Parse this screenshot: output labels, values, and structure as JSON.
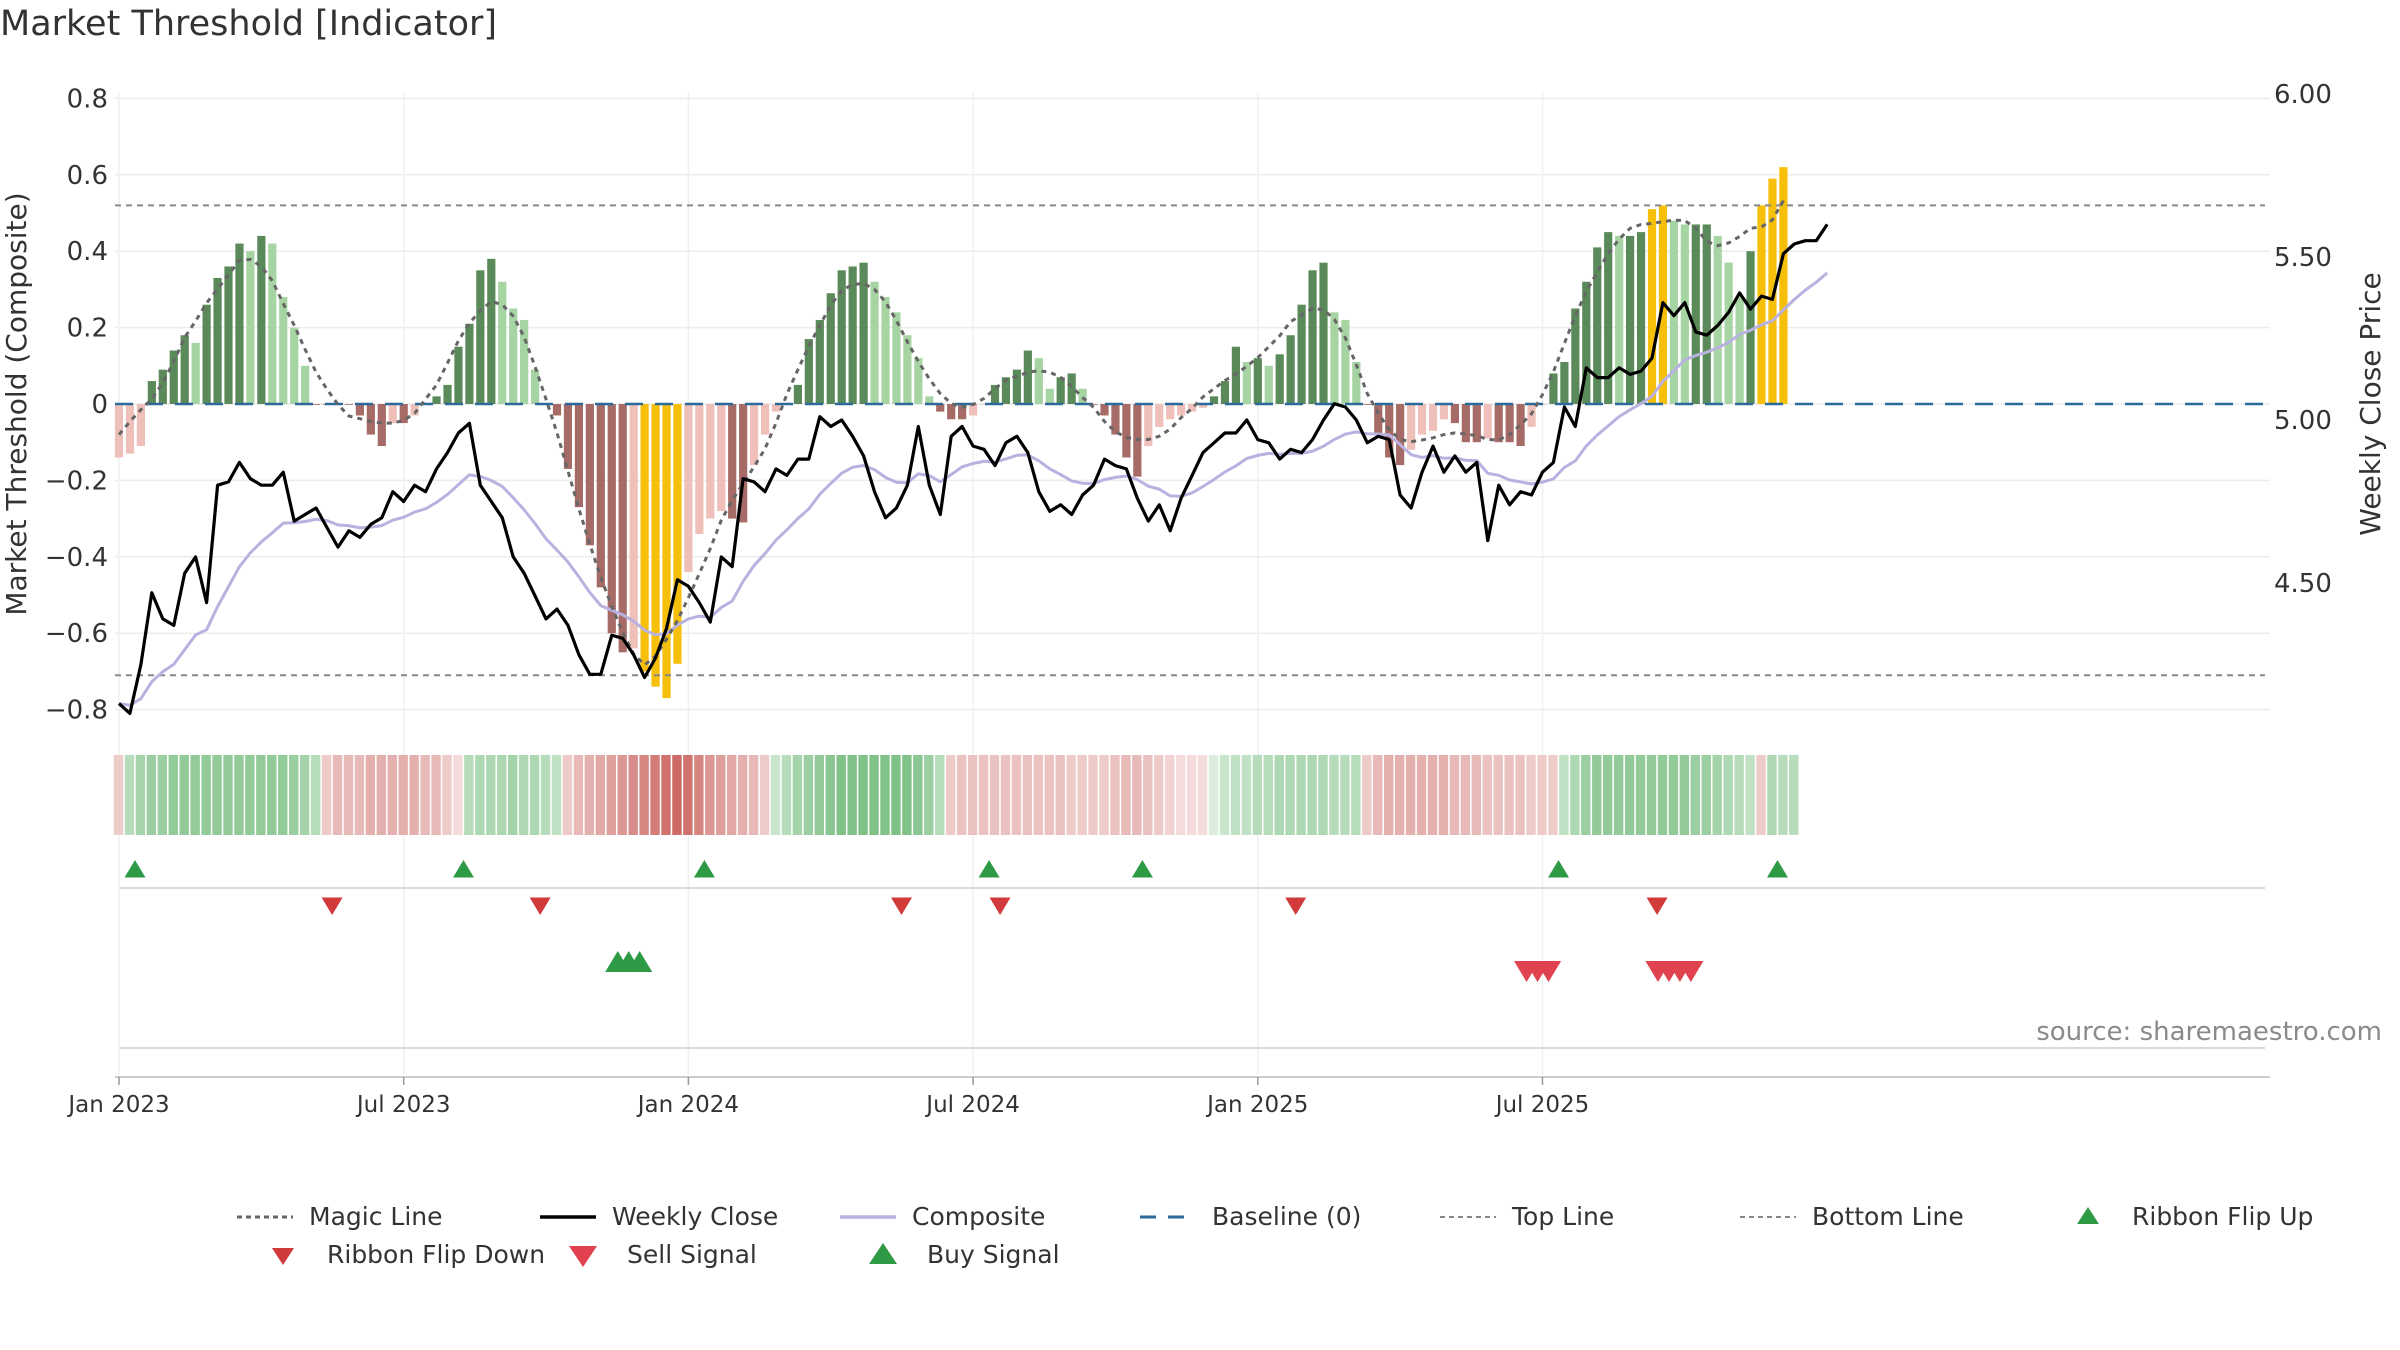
{
  "chart_data": {
    "type": "bar",
    "title": "Market Threshold [Indicator]",
    "ylabel": "Market Threshold (Composite)",
    "y2label": "Weekly Close Price",
    "ylim": [
      -0.84,
      0.84
    ],
    "y2lim": [
      4.0,
      6.05
    ],
    "y_ticks": [
      {
        "value": 0.8,
        "label": "0.8"
      },
      {
        "value": 0.6,
        "label": "0.6"
      },
      {
        "value": 0.4,
        "label": "0.4"
      },
      {
        "value": 0.2,
        "label": "0.2"
      },
      {
        "value": 0,
        "label": "0"
      },
      {
        "value": -0.2,
        "label": "−0.2"
      },
      {
        "value": -0.4,
        "label": "−0.4"
      },
      {
        "value": -0.6,
        "label": "−0.6"
      },
      {
        "value": -0.8,
        "label": "−0.8"
      }
    ],
    "y2_ticks": [
      {
        "value": 6.0,
        "label": "6.00"
      },
      {
        "value": 5.5,
        "label": "5.50"
      },
      {
        "value": 5.0,
        "label": "5.00"
      },
      {
        "value": 4.5,
        "label": "4.50"
      }
    ],
    "x_ticks": [
      {
        "week": 1,
        "label": "Jan 2023"
      },
      {
        "week": 27,
        "label": "Jul 2023"
      },
      {
        "week": 53,
        "label": "Jan 2024"
      },
      {
        "week": 79,
        "label": "Jul 2024"
      },
      {
        "week": 105,
        "label": "Jan 2025"
      },
      {
        "week": 131,
        "label": "Jul 2025"
      }
    ],
    "top_line": 0.52,
    "bottom_line": -0.71,
    "composite_bars": [
      -0.14,
      -0.13,
      -0.11,
      0.06,
      0.09,
      0.14,
      0.18,
      0.16,
      0.26,
      0.33,
      0.36,
      0.42,
      0.4,
      0.44,
      0.42,
      0.28,
      0.2,
      0.1,
      0,
      0,
      0,
      0,
      -0.03,
      -0.08,
      -0.11,
      -0.05,
      -0.05,
      -0.03,
      0,
      0.02,
      0.05,
      0.15,
      0.21,
      0.35,
      0.38,
      0.32,
      0.25,
      0.22,
      0.09,
      0,
      -0.03,
      -0.17,
      -0.27,
      -0.37,
      -0.48,
      -0.6,
      -0.65,
      -0.64,
      -0.7,
      -0.74,
      -0.77,
      -0.68,
      -0.44,
      -0.34,
      -0.3,
      -0.28,
      -0.3,
      -0.31,
      -0.16,
      -0.08,
      -0.02,
      0,
      0.05,
      0.17,
      0.22,
      0.29,
      0.35,
      0.36,
      0.37,
      0.32,
      0.28,
      0.24,
      0.18,
      0.12,
      0.02,
      -0.02,
      -0.04,
      -0.04,
      -0.03,
      0,
      0.05,
      0.07,
      0.09,
      0.14,
      0.12,
      0.04,
      0.07,
      0.08,
      0.04,
      0,
      -0.03,
      -0.08,
      -0.14,
      -0.19,
      -0.11,
      -0.06,
      -0.04,
      -0.03,
      -0.02,
      -0.01,
      0.02,
      0.06,
      0.15,
      0.11,
      0.12,
      0.1,
      0.13,
      0.18,
      0.26,
      0.35,
      0.37,
      0.24,
      0.22,
      0.11,
      0,
      -0.08,
      -0.14,
      -0.16,
      -0.12,
      -0.08,
      -0.07,
      -0.04,
      -0.05,
      -0.1,
      -0.1,
      -0.09,
      -0.1,
      -0.1,
      -0.11,
      -0.06,
      0,
      0.08,
      0.11,
      0.25,
      0.32,
      0.41,
      0.45,
      0.44,
      0.44,
      0.45,
      0.51,
      0.52,
      0.48,
      0.47,
      0.47,
      0.47,
      0.44,
      0.37,
      0.28,
      0.4,
      0.52,
      0.59,
      0.62
    ],
    "ribbon_intensity": [
      -0.3,
      0.4,
      0.5,
      0.55,
      0.55,
      0.6,
      0.6,
      0.6,
      0.6,
      0.6,
      0.6,
      0.6,
      0.6,
      0.6,
      0.6,
      0.6,
      0.55,
      0.5,
      0.4,
      -0.3,
      -0.4,
      -0.4,
      -0.4,
      -0.45,
      -0.45,
      -0.45,
      -0.45,
      -0.45,
      -0.4,
      -0.4,
      -0.3,
      -0.2,
      0.4,
      0.45,
      0.45,
      0.45,
      0.5,
      0.45,
      0.45,
      0.4,
      0.35,
      -0.3,
      -0.4,
      -0.45,
      -0.5,
      -0.55,
      -0.6,
      -0.65,
      -0.7,
      -0.75,
      -0.8,
      -0.85,
      -0.8,
      -0.7,
      -0.6,
      -0.55,
      -0.5,
      -0.45,
      -0.4,
      -0.3,
      0.3,
      0.4,
      0.5,
      0.55,
      0.6,
      0.65,
      0.7,
      0.7,
      0.7,
      0.7,
      0.7,
      0.7,
      0.7,
      0.65,
      0.55,
      0.4,
      -0.3,
      -0.35,
      -0.35,
      -0.35,
      -0.35,
      -0.35,
      -0.35,
      -0.35,
      -0.35,
      -0.35,
      -0.35,
      -0.3,
      -0.3,
      -0.3,
      -0.3,
      -0.35,
      -0.4,
      -0.4,
      -0.35,
      -0.3,
      -0.25,
      -0.2,
      -0.2,
      -0.2,
      0.2,
      0.3,
      0.35,
      0.35,
      0.4,
      0.4,
      0.45,
      0.45,
      0.45,
      0.45,
      0.45,
      0.4,
      0.4,
      0.4,
      -0.3,
      -0.4,
      -0.45,
      -0.45,
      -0.45,
      -0.45,
      -0.45,
      -0.45,
      -0.4,
      -0.4,
      -0.4,
      -0.35,
      -0.35,
      -0.35,
      -0.35,
      -0.3,
      -0.3,
      -0.3,
      0.35,
      0.45,
      0.55,
      0.6,
      0.6,
      0.6,
      0.6,
      0.6,
      0.6,
      0.6,
      0.6,
      0.6,
      0.55,
      0.55,
      0.5,
      0.45,
      0.4,
      0.35,
      -0.3,
      0.45,
      0.4,
      0.4
    ],
    "weekly_close": [
      4.13,
      4.1,
      4.25,
      4.47,
      4.39,
      4.37,
      4.53,
      4.58,
      4.44,
      4.8,
      4.81,
      4.87,
      4.82,
      4.8,
      4.8,
      4.84,
      4.69,
      4.71,
      4.73,
      4.67,
      4.61,
      4.66,
      4.64,
      4.68,
      4.7,
      4.78,
      4.75,
      4.8,
      4.78,
      4.85,
      4.9,
      4.96,
      4.99,
      4.8,
      4.75,
      4.7,
      4.58,
      4.53,
      4.46,
      4.39,
      4.42,
      4.37,
      4.28,
      4.22,
      4.22,
      4.34,
      4.33,
      4.28,
      4.21,
      4.27,
      4.36,
      4.51,
      4.49,
      4.44,
      4.38,
      4.58,
      4.55,
      4.82,
      4.81,
      4.78,
      4.85,
      4.83,
      4.88,
      4.88,
      5.01,
      4.98,
      5.0,
      4.95,
      4.89,
      4.78,
      4.7,
      4.73,
      4.8,
      4.98,
      4.8,
      4.71,
      4.95,
      4.98,
      4.92,
      4.91,
      4.86,
      4.93,
      4.95,
      4.9,
      4.78,
      4.72,
      4.74,
      4.71,
      4.77,
      4.8,
      4.88,
      4.86,
      4.85,
      4.76,
      4.69,
      4.74,
      4.66,
      4.76,
      4.83,
      4.9,
      4.93,
      4.96,
      4.96,
      5.0,
      4.94,
      4.93,
      4.88,
      4.91,
      4.9,
      4.94,
      5.0,
      5.05,
      5.04,
      5.0,
      4.93,
      4.95,
      4.94,
      4.77,
      4.73,
      4.84,
      4.92,
      4.84,
      4.89,
      4.84,
      4.87,
      4.63,
      4.8,
      4.74,
      4.78,
      4.77,
      4.84,
      4.87,
      5.04,
      4.98,
      5.16,
      5.13,
      5.13,
      5.16,
      5.14,
      5.15,
      5.19,
      5.36,
      5.32,
      5.36,
      5.27,
      5.26,
      5.29,
      5.33,
      5.39,
      5.34,
      5.38,
      5.37,
      5.51,
      5.54,
      5.55,
      5.55,
      5.6
    ]
  },
  "signals": {
    "ribbon_flip_up_weeks": [
      1,
      31,
      53,
      79,
      93,
      131,
      151
    ],
    "ribbon_flip_down_weeks": [
      19,
      38,
      71,
      80,
      107,
      140
    ],
    "buy_signal_weeks": [
      46,
      47,
      48
    ],
    "sell_signal_weeks": [
      129,
      130,
      131,
      141,
      142,
      143,
      144
    ]
  },
  "legend": {
    "magic_line": "Magic Line",
    "weekly_close": "Weekly Close",
    "composite": "Composite",
    "baseline": "Baseline (0)",
    "top_line": "Top Line",
    "bottom_line": "Bottom Line",
    "ribbon_flip_up": "Ribbon Flip Up",
    "ribbon_flip_down": "Ribbon Flip Down",
    "sell_signal": "Sell Signal",
    "buy_signal": "Buy Signal"
  },
  "source": "source: sharemaestro.com",
  "colors": {
    "bar_pos_strong": "#5a8a5a",
    "bar_pos_weak": "#a6d4a2",
    "bar_neg_strong": "#a66b66",
    "bar_neg_weak": "#efbfb9",
    "bar_extreme": "#f5bf0a",
    "weekly_close": "#000000",
    "composite_line": "#b9b2e0",
    "magic_line": "#666666",
    "baseline": "#2b6a99",
    "threshold_lines": "#888888",
    "buy": "#2e9a46",
    "sell": "#d03a3a",
    "sell_signal": "#e0424f",
    "ribbon_green": "#4aa855",
    "ribbon_red": "#c4504b"
  }
}
